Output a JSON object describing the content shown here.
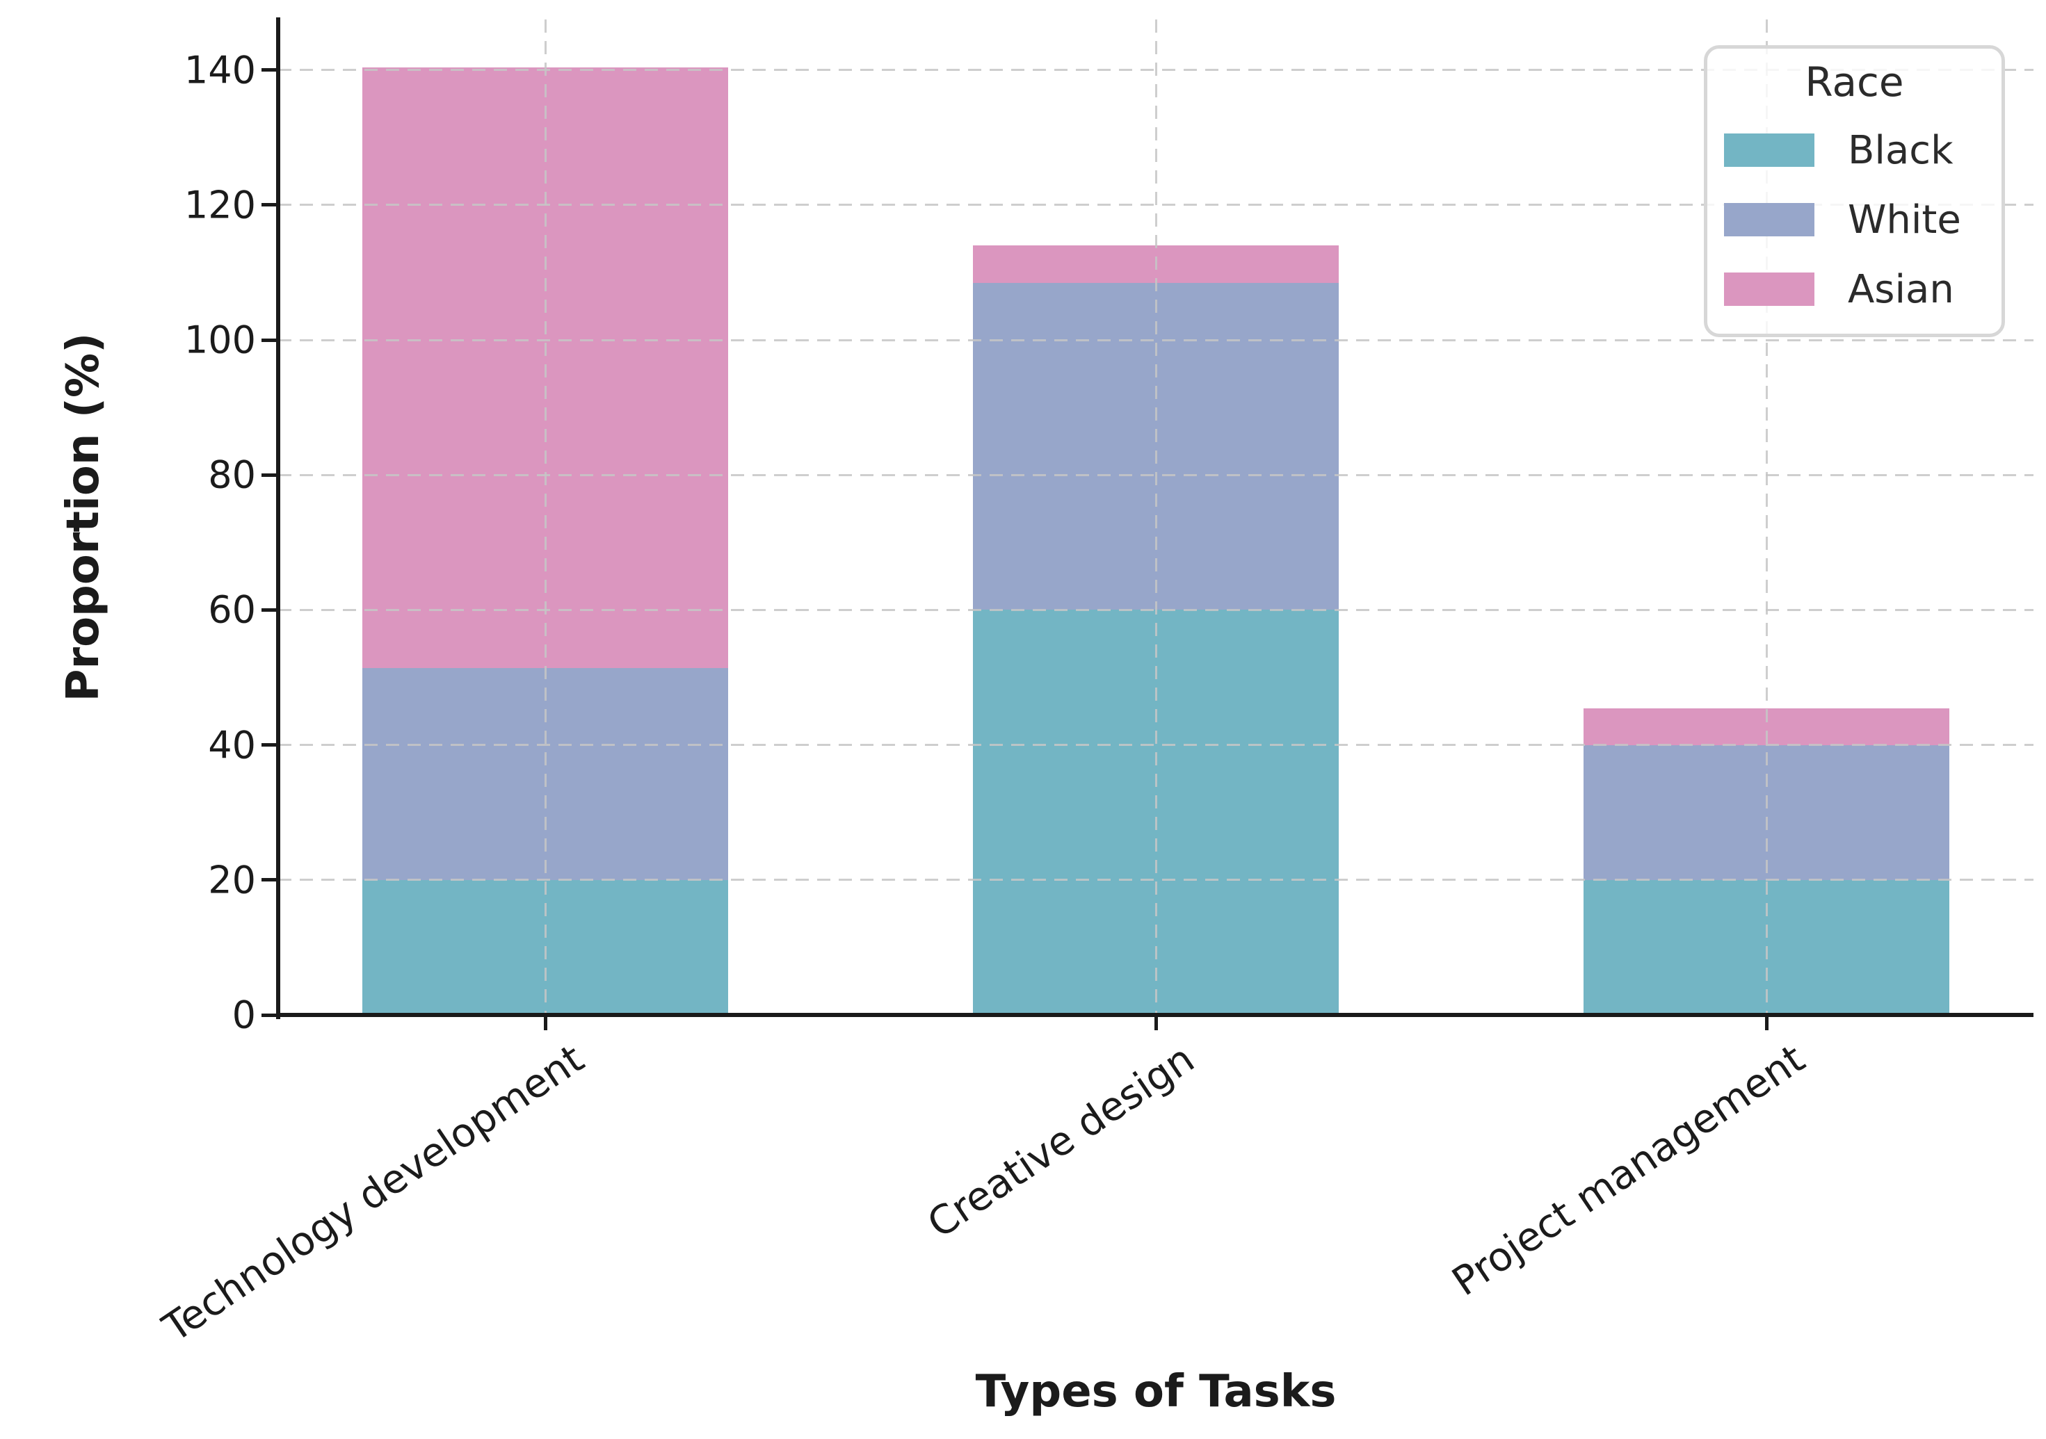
{
  "chart_data": {
    "type": "bar",
    "stacked": true,
    "xlabel": "Types of Tasks",
    "ylabel": "Proportion (%)",
    "categories": [
      "Technology development",
      "Creative design",
      "Project management"
    ],
    "series": [
      {
        "name": "Black",
        "color": "#73b5c4",
        "values": [
          20.0,
          60.0,
          20.0
        ]
      },
      {
        "name": "White",
        "color": "#97a6ca",
        "values": [
          31.4,
          48.5,
          20.0
        ]
      },
      {
        "name": "Asian",
        "color": "#db96bf",
        "values": [
          89.0,
          5.5,
          5.4
        ]
      }
    ],
    "stack_totals": [
      140.4,
      114.0,
      45.4
    ],
    "y_ticks": [
      0,
      20,
      40,
      60,
      80,
      100,
      120,
      140
    ],
    "ylim": [
      0,
      147.5
    ],
    "grid": true,
    "grid_style": "dashed",
    "legend": {
      "title": "Race",
      "position": "upper right"
    },
    "colors": {
      "background": "#ffffff",
      "grid": "#c6c6c6",
      "spine": "#1a1a1a",
      "text": "#1b1b1b"
    }
  }
}
